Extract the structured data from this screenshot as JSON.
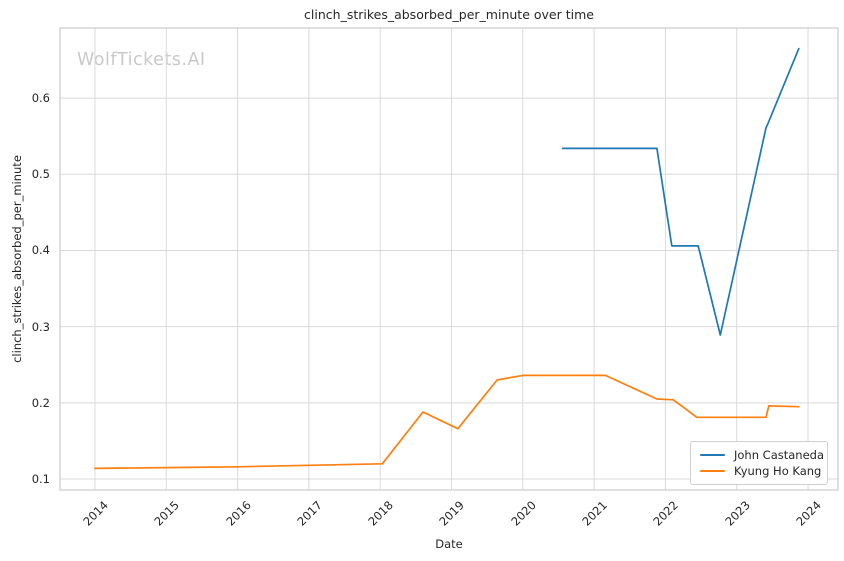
{
  "watermark": "WolfTickets.AI",
  "chart_data": {
    "type": "line",
    "title": "clinch_strikes_absorbed_per_minute over time",
    "xlabel": "Date",
    "ylabel": "clinch_strikes_absorbed_per_minute",
    "xlim": [
      2013.51,
      2024.42
    ],
    "ylim": [
      0.0856,
      0.692
    ],
    "x_ticks": [
      2014,
      2015,
      2016,
      2017,
      2018,
      2019,
      2020,
      2021,
      2022,
      2023,
      2024
    ],
    "y_ticks": [
      0.1,
      0.2,
      0.3,
      0.4,
      0.5,
      0.6
    ],
    "grid": true,
    "legend_position": "lower right",
    "colors": {
      "grid": "#d9d9d9",
      "spine": "#cccccc",
      "text": "#262626",
      "watermark": "#c9c9c9",
      "background": "#ffffff"
    },
    "series": [
      {
        "name": "John Castaneda",
        "color": "#1f77b4",
        "points": [
          [
            2020.56,
            0.534
          ],
          [
            2021.88,
            0.534
          ],
          [
            2022.09,
            0.406
          ],
          [
            2022.46,
            0.406
          ],
          [
            2022.77,
            0.289
          ],
          [
            2023.41,
            0.561
          ],
          [
            2023.44,
            0.567
          ],
          [
            2023.87,
            0.665
          ]
        ]
      },
      {
        "name": "Kyung Ho Kang",
        "color": "#ff7f0e",
        "points": [
          [
            2014.0,
            0.114
          ],
          [
            2015.0,
            0.115
          ],
          [
            2016.0,
            0.116
          ],
          [
            2017.0,
            0.118
          ],
          [
            2018.03,
            0.12
          ],
          [
            2018.6,
            0.188
          ],
          [
            2019.09,
            0.166
          ],
          [
            2019.64,
            0.23
          ],
          [
            2020.0,
            0.236
          ],
          [
            2021.16,
            0.236
          ],
          [
            2021.88,
            0.205
          ],
          [
            2022.11,
            0.204
          ],
          [
            2022.44,
            0.181
          ],
          [
            2023.41,
            0.181
          ],
          [
            2023.45,
            0.196
          ],
          [
            2023.87,
            0.195
          ]
        ]
      }
    ]
  }
}
